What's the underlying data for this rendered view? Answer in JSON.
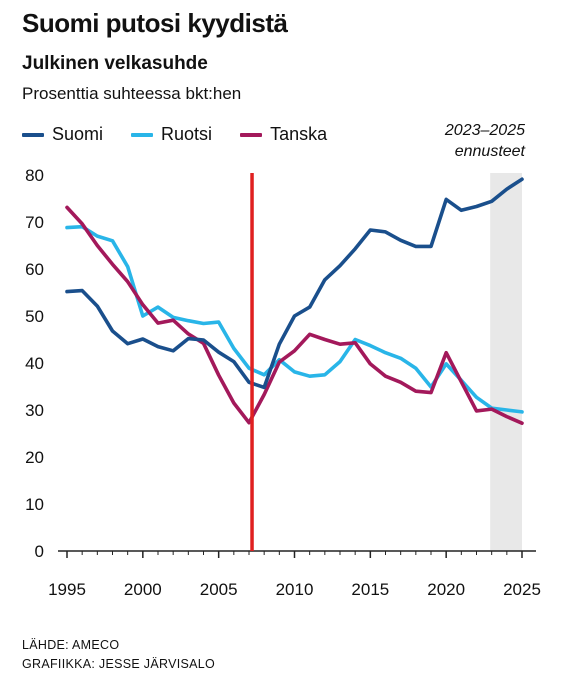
{
  "header": {
    "title": "Suomi putosi kyydistä",
    "subtitle": "Julkinen velkasuhde",
    "unit": "Prosenttia suhteessa bkt:hen"
  },
  "forecast": {
    "line1": "2023–2025",
    "line2": "ennusteet",
    "fill": "#e8e8e8"
  },
  "source": {
    "line1": "LÄHDE: AMECO",
    "line2": "GRAFIIKKA: JESSE JÄRVISALO"
  },
  "chart_data": {
    "type": "line",
    "x": [
      1995,
      1996,
      1997,
      1998,
      1999,
      2000,
      2001,
      2002,
      2003,
      2004,
      2005,
      2006,
      2007,
      2008,
      2009,
      2010,
      2011,
      2012,
      2013,
      2014,
      2015,
      2016,
      2017,
      2018,
      2019,
      2020,
      2021,
      2022,
      2023,
      2024,
      2025
    ],
    "series": [
      {
        "name": "Suomi",
        "color": "#1a4f8c",
        "values": [
          55.2,
          55.4,
          52.1,
          46.8,
          44.1,
          45.1,
          43.5,
          42.6,
          45.2,
          44.9,
          42.3,
          40.3,
          35.9,
          34.8,
          44.0,
          50.0,
          51.9,
          57.7,
          60.7,
          64.3,
          68.3,
          67.9,
          66.1,
          64.8,
          64.8,
          74.8,
          72.5,
          73.3,
          74.4,
          77.0,
          79.1
        ]
      },
      {
        "name": "Ruotsi",
        "color": "#29b5e8",
        "values": [
          68.8,
          69.0,
          67.0,
          66.0,
          60.5,
          50.0,
          51.9,
          49.7,
          49.0,
          48.4,
          48.7,
          43.1,
          38.9,
          37.5,
          40.7,
          38.1,
          37.2,
          37.5,
          40.3,
          45.0,
          43.7,
          42.2,
          41.0,
          38.9,
          34.9,
          39.8,
          36.3,
          32.7,
          30.4,
          30.0,
          29.6
        ]
      },
      {
        "name": "Tanska",
        "color": "#a3195b",
        "values": [
          73.1,
          69.6,
          65.0,
          61.0,
          57.3,
          52.4,
          48.5,
          49.1,
          46.2,
          44.2,
          37.4,
          31.5,
          27.3,
          33.3,
          40.2,
          42.6,
          46.1,
          45.0,
          44.0,
          44.3,
          39.8,
          37.2,
          35.9,
          34.0,
          33.7,
          42.2,
          36.0,
          29.8,
          30.2,
          28.6,
          27.2
        ]
      }
    ],
    "xticks": [
      1995,
      2000,
      2005,
      2010,
      2015,
      2020,
      2025
    ],
    "yticks": [
      0,
      10,
      20,
      30,
      40,
      50,
      60,
      70,
      80
    ],
    "xlim": [
      1995,
      2025
    ],
    "ylim": [
      0,
      80
    ],
    "forecast_range": [
      2022.9,
      2025
    ],
    "marker_year": 2007.2,
    "marker_color": "#e02020",
    "grid": false,
    "legend_position": "top-left"
  }
}
